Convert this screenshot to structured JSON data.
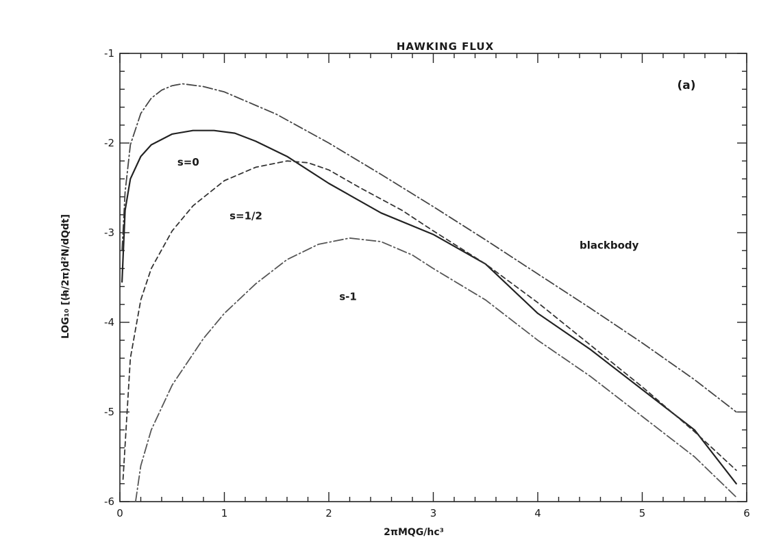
{
  "chart_data": {
    "type": "line",
    "title": "HAWKING FLUX",
    "panel_label": "(a)",
    "xlabel": "2πMQG/hc³",
    "ylabel": "LOG₁₀ [(h̶/2π)d²N/dQdt]",
    "xlim": [
      0,
      6
    ],
    "ylim": [
      -6,
      -1
    ],
    "x_ticks": [
      "0",
      "1",
      "2",
      "3",
      "4",
      "5",
      "6"
    ],
    "y_ticks": [
      "-1",
      "-2",
      "-3",
      "-4",
      "-5",
      "-6"
    ],
    "grid": false,
    "series": [
      {
        "name": "blackbody",
        "style": "dash-dot",
        "color": "#444444",
        "x": [
          0.02,
          0.05,
          0.1,
          0.2,
          0.3,
          0.4,
          0.5,
          0.6,
          0.8,
          1.0,
          1.5,
          2.0,
          2.5,
          3.0,
          3.5,
          4.0,
          4.5,
          5.0,
          5.5,
          5.9
        ],
        "y": [
          -3.2,
          -2.55,
          -2.02,
          -1.67,
          -1.5,
          -1.41,
          -1.36,
          -1.34,
          -1.37,
          -1.43,
          -1.68,
          -2.0,
          -2.35,
          -2.71,
          -3.08,
          -3.46,
          -3.84,
          -4.23,
          -4.64,
          -5.0
        ]
      },
      {
        "name": "s=0",
        "style": "solid",
        "color": "#222222",
        "x": [
          0.02,
          0.05,
          0.1,
          0.2,
          0.3,
          0.5,
          0.7,
          0.9,
          1.1,
          1.3,
          1.6,
          2.0,
          2.5,
          3.0,
          3.5,
          4.0,
          4.5,
          5.0,
          5.5,
          5.9
        ],
        "y": [
          -3.55,
          -2.75,
          -2.4,
          -2.15,
          -2.02,
          -1.9,
          -1.86,
          -1.86,
          -1.89,
          -1.98,
          -2.15,
          -2.45,
          -2.78,
          -3.02,
          -3.35,
          -3.9,
          -4.3,
          -4.75,
          -5.2,
          -5.8
        ]
      },
      {
        "name": "s=1/2",
        "style": "dashed",
        "color": "#333333",
        "x": [
          0.03,
          0.1,
          0.2,
          0.3,
          0.5,
          0.7,
          1.0,
          1.3,
          1.6,
          1.8,
          2.0,
          2.3,
          2.7,
          3.0,
          3.5,
          4.0,
          4.5,
          5.0,
          5.5,
          5.9
        ],
        "y": [
          -5.75,
          -4.4,
          -3.75,
          -3.4,
          -2.98,
          -2.7,
          -2.42,
          -2.27,
          -2.2,
          -2.22,
          -2.3,
          -2.5,
          -2.75,
          -2.98,
          -3.35,
          -3.78,
          -4.25,
          -4.72,
          -5.22,
          -5.65
        ]
      },
      {
        "name": "s-1",
        "style": "dash-dot",
        "color": "#555555",
        "x": [
          0.15,
          0.2,
          0.3,
          0.5,
          0.8,
          1.0,
          1.3,
          1.6,
          1.9,
          2.2,
          2.5,
          2.8,
          3.0,
          3.5,
          4.0,
          4.5,
          5.0,
          5.5,
          5.9
        ],
        "y": [
          -6.0,
          -5.6,
          -5.2,
          -4.7,
          -4.18,
          -3.9,
          -3.57,
          -3.3,
          -3.13,
          -3.06,
          -3.1,
          -3.25,
          -3.4,
          -3.75,
          -4.2,
          -4.6,
          -5.05,
          -5.5,
          -5.95
        ]
      }
    ],
    "annotations": [
      {
        "text": "s=0",
        "x": 0.55,
        "y": -2.25
      },
      {
        "text": "s=1/2",
        "x": 1.05,
        "y": -2.85
      },
      {
        "text": "blackbody",
        "x": 4.4,
        "y": -3.18
      },
      {
        "text": "s-1",
        "x": 2.1,
        "y": -3.75
      }
    ]
  }
}
